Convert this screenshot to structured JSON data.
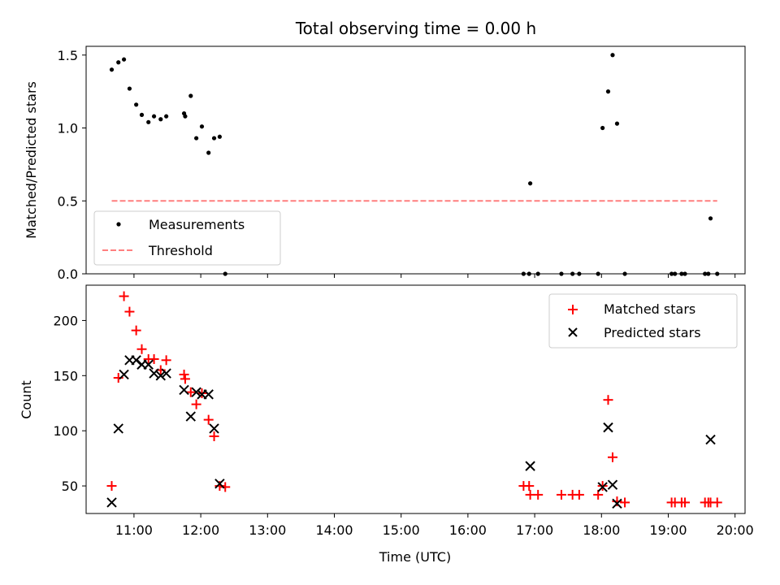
{
  "chart_data": [
    {
      "type": "scatter",
      "title": "Total observing time = 0.00 h",
      "xlabel": "",
      "ylabel": "Matched/Predicted stars",
      "xlim": [
        "10:17",
        "20:09"
      ],
      "ylim": [
        0,
        1.56
      ],
      "yticks": [
        "0.0",
        "0.5",
        "1.0",
        "1.5"
      ],
      "xticks": [
        "11:00",
        "12:00",
        "13:00",
        "14:00",
        "15:00",
        "16:00",
        "17:00",
        "18:00",
        "19:00",
        "20:00"
      ],
      "legend": {
        "placement": "lower-left",
        "entries": [
          "Measurements",
          "Threshold"
        ]
      },
      "series": [
        {
          "name": "Measurements",
          "marker": "dot",
          "color": "#000000",
          "points": [
            [
              "10:40",
              1.4
            ],
            [
              "10:46",
              1.45
            ],
            [
              "10:51",
              1.47
            ],
            [
              "10:56",
              1.27
            ],
            [
              "11:02",
              1.16
            ],
            [
              "11:07",
              1.09
            ],
            [
              "11:13",
              1.04
            ],
            [
              "11:18",
              1.08
            ],
            [
              "11:24",
              1.06
            ],
            [
              "11:29",
              1.08
            ],
            [
              "11:45",
              1.1
            ],
            [
              "11:46",
              1.08
            ],
            [
              "11:51",
              1.22
            ],
            [
              "11:56",
              0.93
            ],
            [
              "12:01",
              1.01
            ],
            [
              "12:07",
              0.83
            ],
            [
              "12:12",
              0.93
            ],
            [
              "12:17",
              0.94
            ],
            [
              "12:22",
              0.0
            ],
            [
              "16:50",
              0.0
            ],
            [
              "16:55",
              0.0
            ],
            [
              "16:56",
              0.62
            ],
            [
              "17:03",
              0.0
            ],
            [
              "17:24",
              0.0
            ],
            [
              "17:34",
              0.0
            ],
            [
              "17:40",
              0.0
            ],
            [
              "17:57",
              0.0
            ],
            [
              "18:01",
              1.0
            ],
            [
              "18:06",
              1.25
            ],
            [
              "18:10",
              1.5
            ],
            [
              "18:14",
              1.03
            ],
            [
              "18:21",
              0.0
            ],
            [
              "19:03",
              0.0
            ],
            [
              "19:06",
              0.0
            ],
            [
              "19:12",
              0.0
            ],
            [
              "19:15",
              0.0
            ],
            [
              "19:33",
              0.0
            ],
            [
              "19:36",
              0.0
            ],
            [
              "19:38",
              0.38
            ],
            [
              "19:44",
              0.0
            ]
          ]
        },
        {
          "name": "Threshold",
          "marker": "dashed-line",
          "color": "#ff7f7f",
          "points": [
            [
              "10:40",
              0.5
            ],
            [
              "19:44",
              0.5
            ]
          ]
        }
      ]
    },
    {
      "type": "scatter",
      "title": "",
      "xlabel": "Time (UTC)",
      "ylabel": "Count",
      "xlim": [
        "10:17",
        "20:09"
      ],
      "ylim": [
        25,
        232
      ],
      "yticks": [
        "50",
        "100",
        "150",
        "200"
      ],
      "xticks": [
        "11:00",
        "12:00",
        "13:00",
        "14:00",
        "15:00",
        "16:00",
        "17:00",
        "18:00",
        "19:00",
        "20:00"
      ],
      "legend": {
        "placement": "top-right",
        "entries": [
          "Matched stars",
          "Predicted stars"
        ]
      },
      "series": [
        {
          "name": "Matched stars",
          "marker": "plus",
          "color": "#ff0000",
          "points": [
            [
              "10:40",
              50
            ],
            [
              "10:46",
              148
            ],
            [
              "10:51",
              222
            ],
            [
              "10:56",
              208
            ],
            [
              "11:02",
              191
            ],
            [
              "11:07",
              174
            ],
            [
              "11:13",
              165
            ],
            [
              "11:18",
              165
            ],
            [
              "11:24",
              155
            ],
            [
              "11:29",
              164
            ],
            [
              "11:45",
              151
            ],
            [
              "11:46",
              147
            ],
            [
              "11:51",
              135
            ],
            [
              "11:56",
              124
            ],
            [
              "12:01",
              134
            ],
            [
              "12:07",
              110
            ],
            [
              "12:12",
              95
            ],
            [
              "12:17",
              50
            ],
            [
              "12:22",
              49
            ],
            [
              "16:50",
              50
            ],
            [
              "16:55",
              50
            ],
            [
              "16:56",
              42
            ],
            [
              "17:03",
              42
            ],
            [
              "17:24",
              42
            ],
            [
              "17:34",
              42
            ],
            [
              "17:40",
              42
            ],
            [
              "17:57",
              42
            ],
            [
              "18:01",
              50
            ],
            [
              "18:06",
              128
            ],
            [
              "18:10",
              76
            ],
            [
              "18:14",
              36
            ],
            [
              "18:21",
              35
            ],
            [
              "19:03",
              35
            ],
            [
              "19:06",
              35
            ],
            [
              "19:12",
              35
            ],
            [
              "19:15",
              35
            ],
            [
              "19:33",
              35
            ],
            [
              "19:36",
              35
            ],
            [
              "19:38",
              35
            ],
            [
              "19:44",
              35
            ]
          ]
        },
        {
          "name": "Predicted stars",
          "marker": "x",
          "color": "#000000",
          "points": [
            [
              "10:40",
              35
            ],
            [
              "10:46",
              102
            ],
            [
              "10:51",
              151
            ],
            [
              "10:56",
              164
            ],
            [
              "11:02",
              164
            ],
            [
              "11:07",
              160
            ],
            [
              "11:13",
              160
            ],
            [
              "11:18",
              152
            ],
            [
              "11:24",
              150
            ],
            [
              "11:29",
              152
            ],
            [
              "11:45",
              137
            ],
            [
              "11:51",
              113
            ],
            [
              "11:56",
              135
            ],
            [
              "12:01",
              133
            ],
            [
              "12:07",
              133
            ],
            [
              "12:12",
              102
            ],
            [
              "12:17",
              52
            ],
            [
              "16:56",
              68
            ],
            [
              "18:01",
              49
            ],
            [
              "18:06",
              103
            ],
            [
              "18:10",
              51
            ],
            [
              "18:14",
              34
            ],
            [
              "19:38",
              92
            ]
          ]
        }
      ]
    }
  ]
}
